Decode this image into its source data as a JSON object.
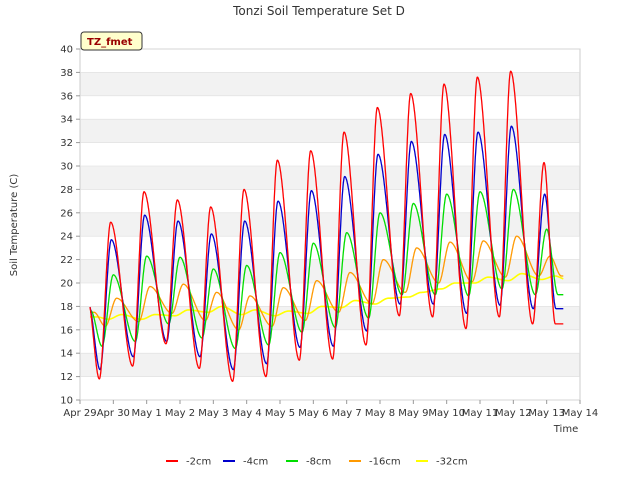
{
  "chart_data": {
    "type": "line",
    "title": "Tonzi Soil Temperature Set D",
    "xlabel": "Time",
    "ylabel": "Soil Temperature (C)",
    "badge": "TZ_fmet",
    "xlim": [
      0,
      15
    ],
    "ylim": [
      10,
      40
    ],
    "yticks": [
      10,
      12,
      14,
      16,
      18,
      20,
      22,
      24,
      26,
      28,
      30,
      32,
      34,
      36,
      38,
      40
    ],
    "xticks": [
      {
        "x": 0,
        "label": "Apr 29"
      },
      {
        "x": 1,
        "label": "Apr 30"
      },
      {
        "x": 2,
        "label": "May 1"
      },
      {
        "x": 3,
        "label": "May 2"
      },
      {
        "x": 4,
        "label": "May 3"
      },
      {
        "x": 5,
        "label": "May 4"
      },
      {
        "x": 6,
        "label": "May 5"
      },
      {
        "x": 7,
        "label": "May 6"
      },
      {
        "x": 8,
        "label": "May 7"
      },
      {
        "x": 9,
        "label": "May 8"
      },
      {
        "x": 10,
        "label": "May 9"
      },
      {
        "x": 11,
        "label": "May 10"
      },
      {
        "x": 12,
        "label": "May 11"
      },
      {
        "x": 13,
        "label": "May 12"
      },
      {
        "x": 14,
        "label": "May 13"
      },
      {
        "x": 15,
        "label": "May 14"
      }
    ],
    "grid": "horizontal bands",
    "legend_position": "bottom",
    "x_start": 0.3,
    "x_end": 14.5,
    "series": [
      {
        "name": "-2cm",
        "color": "#ff0000",
        "width": 1.3,
        "peaks": [
          25.2,
          27.8,
          27.1,
          26.5,
          28.0,
          30.5,
          31.3,
          32.9,
          35.0,
          36.2,
          37.0,
          37.6,
          38.1,
          30.3
        ],
        "mins": [
          11.8,
          12.9,
          14.8,
          12.7,
          11.6,
          12.0,
          13.4,
          13.5,
          14.7,
          17.2,
          17.1,
          16.1,
          17.1,
          16.5
        ],
        "peak_phase": 0.62,
        "min_phase": 0.28
      },
      {
        "name": "-4cm",
        "color": "#0000cc",
        "width": 1.3,
        "peaks": [
          23.7,
          25.8,
          25.3,
          24.2,
          25.3,
          27.0,
          27.9,
          29.1,
          31.0,
          32.1,
          32.7,
          32.9,
          33.4,
          27.6
        ],
        "mins": [
          12.6,
          13.7,
          15.0,
          13.7,
          12.6,
          13.1,
          14.5,
          14.6,
          15.9,
          18.2,
          18.2,
          17.4,
          18.1,
          17.8
        ],
        "peak_phase": 0.64,
        "min_phase": 0.3
      },
      {
        "name": "-8cm",
        "color": "#00dd00",
        "width": 1.3,
        "peaks": [
          20.7,
          22.3,
          22.2,
          21.2,
          21.5,
          22.6,
          23.4,
          24.3,
          26.0,
          26.8,
          27.6,
          27.8,
          28.0,
          24.6
        ],
        "mins": [
          14.6,
          15.0,
          16.5,
          15.3,
          14.4,
          14.7,
          15.8,
          16.2,
          17.0,
          19.0,
          19.0,
          18.9,
          19.5,
          19.0
        ],
        "peak_phase": 0.7,
        "min_phase": 0.36
      },
      {
        "name": "-16cm",
        "color": "#ff9900",
        "width": 1.3,
        "peaks": [
          18.7,
          19.7,
          19.9,
          19.2,
          18.9,
          19.6,
          20.2,
          20.9,
          22.0,
          23.0,
          23.5,
          23.6,
          24.0,
          22.3
        ],
        "mins": [
          16.3,
          16.7,
          17.4,
          16.8,
          16.0,
          16.3,
          16.8,
          17.5,
          18.2,
          19.2,
          20.0,
          20.1,
          20.5,
          20.6
        ],
        "peak_phase": 0.8,
        "min_phase": 0.46
      },
      {
        "name": "-32cm",
        "color": "#ffff00",
        "width": 1.6,
        "peaks": [
          17.3,
          17.3,
          17.7,
          18.0,
          17.7,
          17.6,
          18.0,
          18.5,
          18.7,
          19.2,
          20.0,
          20.5,
          20.8,
          20.6
        ],
        "mins": [
          16.9,
          16.9,
          17.2,
          17.5,
          17.3,
          17.2,
          17.4,
          17.9,
          18.2,
          18.8,
          19.5,
          20.0,
          20.2,
          20.3
        ],
        "peak_phase": 0.95,
        "min_phase": 0.55
      }
    ]
  }
}
